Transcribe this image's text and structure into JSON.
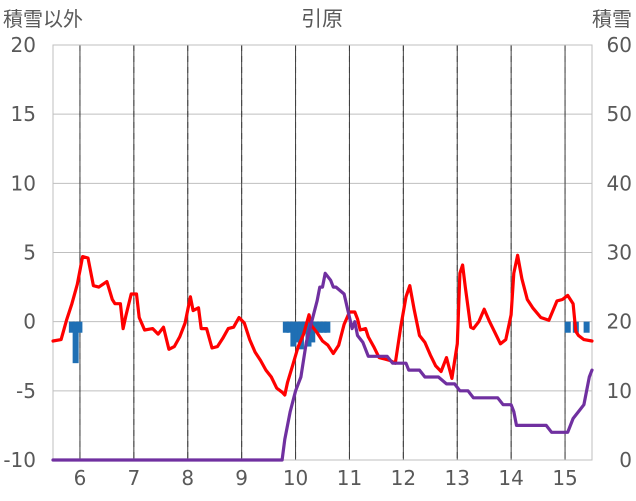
{
  "chart_data": {
    "type": "line",
    "title": "引原",
    "y_left_label": "積雪以外",
    "y_right_label": "積雪",
    "y_left_range": [
      -10,
      20
    ],
    "y_left_ticks": [
      "20",
      "15",
      "10",
      "5",
      "0",
      "-5",
      "-10"
    ],
    "y_right_range": [
      0,
      60
    ],
    "y_right_ticks": [
      "60",
      "50",
      "40",
      "30",
      "20",
      "10",
      "0"
    ],
    "x_range": [
      5.5,
      15.5
    ],
    "x_ticks": [
      "6",
      "7",
      "8",
      "9",
      "10",
      "11",
      "12",
      "13",
      "14",
      "15"
    ],
    "grid": true,
    "series": [
      {
        "color": "#ff0000",
        "axis": "left",
        "points": [
          [
            5.5,
            -1.4
          ],
          [
            5.65,
            -1.3
          ],
          [
            5.75,
            0.1
          ],
          [
            5.85,
            1.3
          ],
          [
            5.95,
            2.7
          ],
          [
            6.05,
            4.7
          ],
          [
            6.15,
            4.6
          ],
          [
            6.25,
            2.6
          ],
          [
            6.35,
            2.5
          ],
          [
            6.5,
            2.9
          ],
          [
            6.6,
            1.6
          ],
          [
            6.65,
            1.3
          ],
          [
            6.75,
            1.3
          ],
          [
            6.8,
            -0.5
          ],
          [
            6.85,
            0.4
          ],
          [
            6.95,
            2.0
          ],
          [
            7.05,
            2.0
          ],
          [
            7.1,
            0.3
          ],
          [
            7.2,
            -0.6
          ],
          [
            7.35,
            -0.5
          ],
          [
            7.45,
            -0.9
          ],
          [
            7.55,
            -0.4
          ],
          [
            7.65,
            -2.0
          ],
          [
            7.75,
            -1.8
          ],
          [
            7.85,
            -1.1
          ],
          [
            7.95,
            -0.1
          ],
          [
            8.05,
            1.8
          ],
          [
            8.1,
            0.8
          ],
          [
            8.2,
            1.0
          ],
          [
            8.25,
            -0.5
          ],
          [
            8.35,
            -0.5
          ],
          [
            8.45,
            -1.9
          ],
          [
            8.55,
            -1.8
          ],
          [
            8.65,
            -1.2
          ],
          [
            8.75,
            -0.5
          ],
          [
            8.85,
            -0.4
          ],
          [
            8.95,
            0.3
          ],
          [
            9.05,
            -0.1
          ],
          [
            9.15,
            -1.3
          ],
          [
            9.25,
            -2.2
          ],
          [
            9.35,
            -2.8
          ],
          [
            9.45,
            -3.5
          ],
          [
            9.55,
            -4.0
          ],
          [
            9.65,
            -4.8
          ],
          [
            9.75,
            -5.1
          ],
          [
            9.8,
            -5.3
          ],
          [
            9.85,
            -4.4
          ],
          [
            9.95,
            -3.1
          ],
          [
            10.05,
            -1.8
          ],
          [
            10.15,
            -0.9
          ],
          [
            10.25,
            0.5
          ],
          [
            10.3,
            -0.3
          ],
          [
            10.4,
            -0.8
          ],
          [
            10.5,
            -1.4
          ],
          [
            10.6,
            -1.7
          ],
          [
            10.7,
            -2.3
          ],
          [
            10.8,
            -1.7
          ],
          [
            10.9,
            -0.2
          ],
          [
            11.0,
            0.7
          ],
          [
            11.1,
            0.7
          ],
          [
            11.15,
            0.2
          ],
          [
            11.2,
            -0.6
          ],
          [
            11.3,
            -0.5
          ],
          [
            11.35,
            -1.1
          ],
          [
            11.45,
            -1.8
          ],
          [
            11.55,
            -2.6
          ],
          [
            11.65,
            -2.7
          ],
          [
            11.75,
            -2.8
          ],
          [
            11.85,
            -3.0
          ],
          [
            11.95,
            -0.4
          ],
          [
            12.05,
            1.8
          ],
          [
            12.12,
            2.6
          ],
          [
            12.2,
            0.9
          ],
          [
            12.3,
            -1.0
          ],
          [
            12.4,
            -1.5
          ],
          [
            12.5,
            -2.4
          ],
          [
            12.6,
            -3.2
          ],
          [
            12.7,
            -3.6
          ],
          [
            12.8,
            -2.6
          ],
          [
            12.9,
            -4.1
          ],
          [
            13.0,
            -1.6
          ],
          [
            13.05,
            3.5
          ],
          [
            13.1,
            4.1
          ],
          [
            13.15,
            2.5
          ],
          [
            13.25,
            -0.4
          ],
          [
            13.3,
            -0.5
          ],
          [
            13.4,
            0.0
          ],
          [
            13.5,
            0.9
          ],
          [
            13.6,
            0.0
          ],
          [
            13.7,
            -0.8
          ],
          [
            13.8,
            -1.6
          ],
          [
            13.9,
            -1.3
          ],
          [
            14.0,
            0.5
          ],
          [
            14.05,
            3.5
          ],
          [
            14.12,
            4.8
          ],
          [
            14.2,
            3.1
          ],
          [
            14.3,
            1.6
          ],
          [
            14.4,
            1.0
          ],
          [
            14.55,
            0.3
          ],
          [
            14.7,
            0.1
          ],
          [
            14.85,
            1.5
          ],
          [
            14.95,
            1.6
          ],
          [
            15.05,
            1.9
          ],
          [
            15.15,
            1.3
          ],
          [
            15.2,
            -0.7
          ],
          [
            15.25,
            -1.0
          ],
          [
            15.35,
            -1.3
          ],
          [
            15.5,
            -1.4
          ]
        ]
      },
      {
        "color": "#7030a0",
        "axis": "right",
        "points": [
          [
            5.5,
            0
          ],
          [
            9.75,
            0
          ],
          [
            9.8,
            3
          ],
          [
            9.85,
            5
          ],
          [
            9.9,
            7
          ],
          [
            10.0,
            10
          ],
          [
            10.1,
            12
          ],
          [
            10.2,
            17
          ],
          [
            10.3,
            20
          ],
          [
            10.4,
            23
          ],
          [
            10.45,
            25
          ],
          [
            10.5,
            25
          ],
          [
            10.55,
            27
          ],
          [
            10.65,
            26
          ],
          [
            10.7,
            25
          ],
          [
            10.75,
            25
          ],
          [
            10.9,
            24
          ],
          [
            11.05,
            19
          ],
          [
            11.1,
            20
          ],
          [
            11.15,
            18
          ],
          [
            11.25,
            17
          ],
          [
            11.35,
            15
          ],
          [
            11.45,
            15
          ],
          [
            11.7,
            15
          ],
          [
            11.8,
            14
          ],
          [
            12.05,
            14
          ],
          [
            12.1,
            13
          ],
          [
            12.3,
            13
          ],
          [
            12.4,
            12
          ],
          [
            12.65,
            12
          ],
          [
            12.8,
            11
          ],
          [
            12.95,
            11
          ],
          [
            13.05,
            10
          ],
          [
            13.2,
            10
          ],
          [
            13.3,
            9
          ],
          [
            13.75,
            9
          ],
          [
            13.85,
            8
          ],
          [
            14.0,
            8
          ],
          [
            14.05,
            7
          ],
          [
            14.1,
            5
          ],
          [
            14.2,
            5
          ],
          [
            14.25,
            5
          ],
          [
            14.65,
            5
          ],
          [
            14.75,
            4
          ],
          [
            15.05,
            4
          ],
          [
            15.15,
            6
          ],
          [
            15.25,
            7
          ],
          [
            15.35,
            8
          ],
          [
            15.45,
            12
          ],
          [
            15.5,
            13
          ]
        ]
      }
    ],
    "bars": {
      "color": "#1f6fb4",
      "axis": "left",
      "points": [
        [
          5.85,
          -0.8
        ],
        [
          5.92,
          -3.0
        ],
        [
          5.99,
          -0.8
        ],
        [
          9.82,
          -0.8
        ],
        [
          9.89,
          -0.8
        ],
        [
          9.96,
          -1.8
        ],
        [
          10.03,
          -1.5
        ],
        [
          10.1,
          -2.0
        ],
        [
          10.17,
          -0.8
        ],
        [
          10.24,
          -1.8
        ],
        [
          10.31,
          -1.5
        ],
        [
          10.38,
          -0.8
        ],
        [
          10.45,
          -0.8
        ],
        [
          10.52,
          -0.8
        ],
        [
          10.59,
          -0.8
        ],
        [
          15.05,
          -0.8
        ],
        [
          15.2,
          -0.8
        ],
        [
          15.4,
          -0.8
        ]
      ]
    }
  }
}
